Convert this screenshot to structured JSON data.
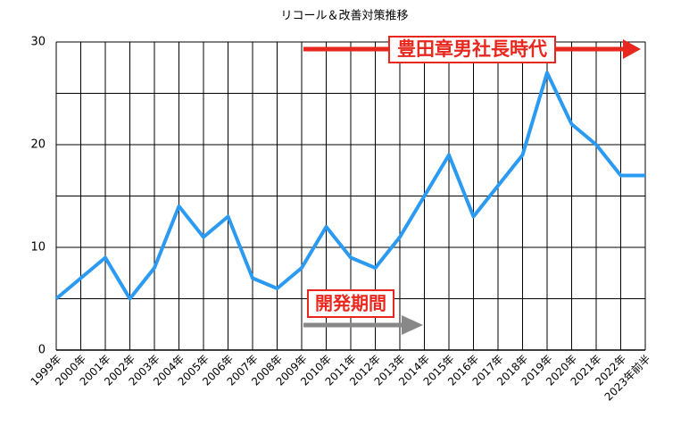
{
  "chart_data": {
    "type": "line",
    "title": "リコール＆改善対策推移",
    "categories": [
      "1999年",
      "2000年",
      "2001年",
      "2002年",
      "2003年",
      "2004年",
      "2005年",
      "2006年",
      "2007年",
      "2008年",
      "2009年",
      "2010年",
      "2011年",
      "2012年",
      "2013年",
      "2014年",
      "2015年",
      "2016年",
      "2017年",
      "2018年",
      "2019年",
      "2020年",
      "2021年",
      "2022年",
      "2023年前半"
    ],
    "values": [
      5,
      7,
      9,
      5,
      8,
      14,
      11,
      13,
      7,
      6,
      8,
      12,
      9,
      8,
      11,
      15,
      19,
      13,
      16,
      19,
      27,
      22,
      20,
      17,
      17
    ],
    "color": "#2b9af3",
    "ylim": [
      0,
      30
    ],
    "yticks": [
      0,
      10,
      20,
      30
    ],
    "yminorticks": [
      5,
      15,
      25
    ],
    "grid": true,
    "annotations": [
      "豊田章男社長時代",
      "開発期間"
    ]
  }
}
